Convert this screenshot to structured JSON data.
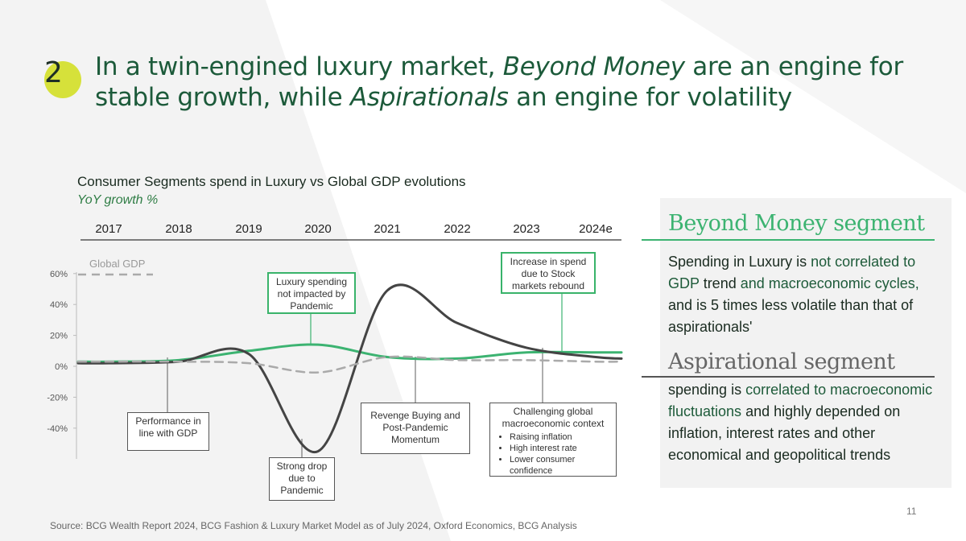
{
  "slide_number": "2",
  "headline": {
    "part1": "In a twin-engined luxury market, ",
    "em1": "Beyond Money",
    "part2": " are an engine for stable growth, while ",
    "em2": "Aspirationals",
    "part3": " an engine for volatility"
  },
  "chart_data": {
    "type": "line",
    "title": "Consumer Segments spend in Luxury vs Global GDP evolutions",
    "subtitle": "YoY growth %",
    "categories": [
      "2017",
      "2018",
      "2019",
      "2020",
      "2021",
      "2022",
      "2023",
      "2024e"
    ],
    "y_ticks": [
      "60%",
      "40%",
      "20%",
      "0%",
      "-20%",
      "-40%"
    ],
    "ylim": [
      -60,
      65
    ],
    "series": [
      {
        "name": "Beyond Money",
        "color": "#3cb371",
        "values": [
          3,
          4,
          10,
          14,
          6,
          5,
          9,
          9
        ]
      },
      {
        "name": "Aspirationals",
        "color": "#444444",
        "values": [
          2,
          3,
          8,
          -55,
          49,
          28,
          12,
          6
        ]
      },
      {
        "name": "Global GDP",
        "color": "#aaaaaa",
        "dashed": true,
        "values": [
          3,
          3,
          2,
          -4,
          6,
          4,
          4,
          3
        ]
      }
    ],
    "legend_label": "Global GDP",
    "annotations": {
      "performance": "Performance in line with GDP",
      "strong_drop": "Strong drop due to Pandemic",
      "luxury_not_impacted": "Luxury spending not impacted by Pandemic",
      "revenge": "Revenge Buying and Post-Pandemic Momentum",
      "increase_stock": "Increase in spend due to Stock markets rebound",
      "challenging_title": "Challenging global macroeconomic context",
      "challenging_items": [
        "Raising inflation",
        "High interest rate",
        "Lower consumer confidence"
      ]
    }
  },
  "right_panel": {
    "beyond_money_title": "Beyond Money segment",
    "bm_t1": "Spending in Luxury is ",
    "bm_t2": "not correlated to GDP",
    "bm_t3": " trend ",
    "bm_t4": "and macroeconomic cycles,",
    "bm_t5": " and is 5 times less volatile than that of aspirationals'",
    "aspirational_title": "Aspirational segment",
    "asp_t1": "spending is ",
    "asp_t2": "correlated to macroeconomic fluctuations",
    "asp_t3": " and highly depended on inflation, interest rates and other economical and geopolitical trends"
  },
  "page_number": "11",
  "source": "Source: BCG Wealth Report 2024, BCG Fashion & Luxury Market Model as of July 2024, Oxford Economics, BCG Analysis",
  "colors": {
    "accent_green": "#3cb371",
    "headline_green": "#1c5a3a",
    "circle_yellow": "#d6e13a"
  }
}
